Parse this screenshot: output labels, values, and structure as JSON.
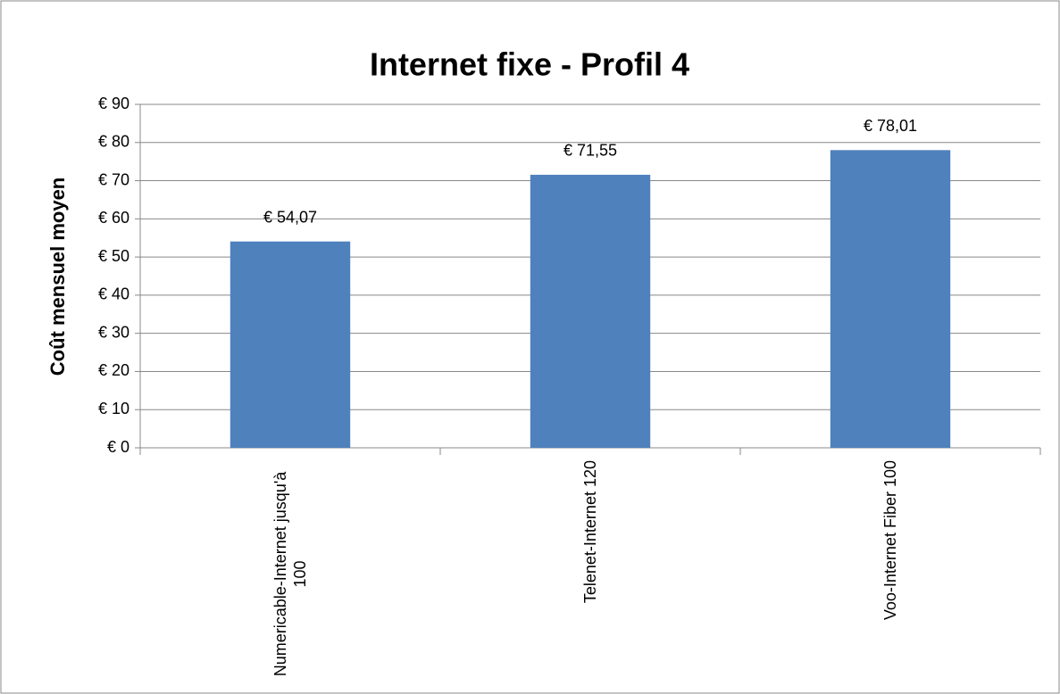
{
  "chart_data": {
    "type": "bar",
    "title": "Internet fixe - Profil 4",
    "y_axis_label": "Coût mensuel moyen",
    "categories": [
      "Numericable-Internet jusqu'à 100",
      "Telenet-Internet 120",
      "Voo-Internet Fiber 100"
    ],
    "values": [
      54.07,
      71.55,
      78.01
    ],
    "value_labels": [
      "€ 54,07",
      "€ 71,55",
      "€ 78,01"
    ],
    "color": "#4f81bd",
    "ylim": [
      0,
      90
    ],
    "yticks": [
      {
        "value": 0,
        "label": "€ 0"
      },
      {
        "value": 10,
        "label": "€ 10"
      },
      {
        "value": 20,
        "label": "€ 20"
      },
      {
        "value": 30,
        "label": "€ 30"
      },
      {
        "value": 40,
        "label": "€ 40"
      },
      {
        "value": 50,
        "label": "€ 50"
      },
      {
        "value": 60,
        "label": "€ 60"
      },
      {
        "value": 70,
        "label": "€ 70"
      },
      {
        "value": 80,
        "label": "€ 80"
      },
      {
        "value": 90,
        "label": "€ 90"
      }
    ],
    "grid": true
  }
}
